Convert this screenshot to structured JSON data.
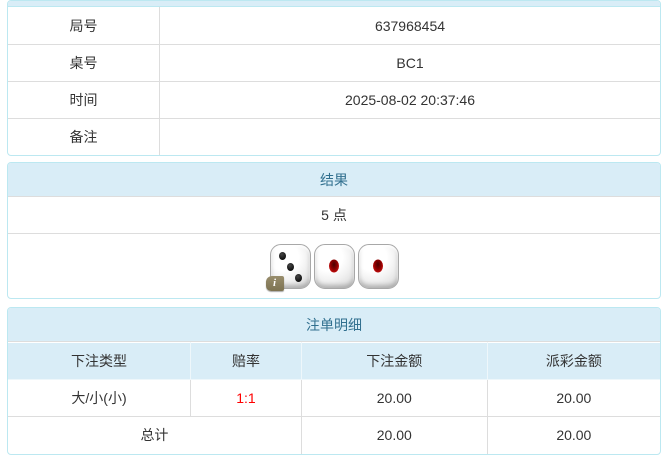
{
  "info_table": {
    "rows": [
      {
        "label": "局号",
        "value": "637968454"
      },
      {
        "label": "桌号",
        "value": "BC1"
      },
      {
        "label": "时间",
        "value": "2025-08-02 20:37:46"
      },
      {
        "label": "备注",
        "value": ""
      }
    ]
  },
  "result_panel": {
    "title": "结果",
    "points": "5 点",
    "dice": [
      {
        "pips": 3,
        "pip_color": "black",
        "has_info_badge": true
      },
      {
        "pips": 1,
        "pip_color": "red",
        "has_info_badge": false
      },
      {
        "pips": 1,
        "pip_color": "red",
        "has_info_badge": false
      }
    ],
    "info_badge_label": "i"
  },
  "bet_panel": {
    "title": "注单明细",
    "columns": [
      "下注类型",
      "赔率",
      "下注金额",
      "派彩金额"
    ],
    "rows": [
      {
        "bet_type": "大/小(小)",
        "odds": "1:1",
        "bet_amount": "20.00",
        "payout_amount": "20.00"
      }
    ],
    "total": {
      "label": "总计",
      "bet_amount": "20.00",
      "payout_amount": "20.00"
    }
  },
  "colors": {
    "panel_border": "#bce8f1",
    "header_bg": "#d9edf7",
    "header_text": "#31708f",
    "cell_border": "#dddddd",
    "body_text": "#333333",
    "odds_red": "#ff0000",
    "info_badge_bg": "#857a58"
  }
}
